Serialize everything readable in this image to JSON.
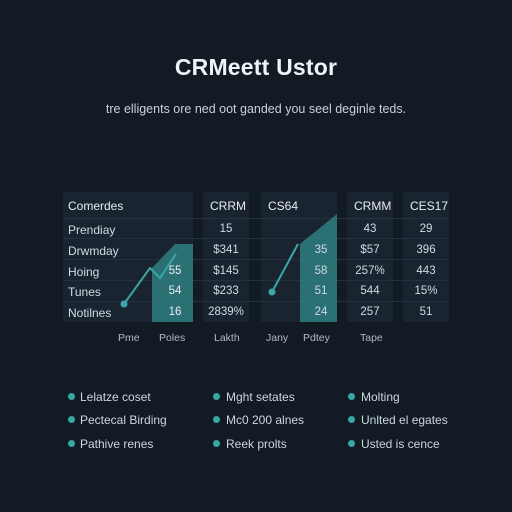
{
  "header": {
    "title": "CRMeett Ustor",
    "subtitle": "tre elligents ore ned oot ganded you seel deginle teds."
  },
  "table": {
    "col1_header": "Comerdes",
    "row_labels": [
      "Prendiay",
      "Drwmday",
      "Hoing",
      "Tunes",
      "Notilnes"
    ],
    "col2_header": "CRRM",
    "col2_values": [
      "15",
      "$341",
      "$145",
      "$233",
      "2839%"
    ],
    "col3_header": "CS64",
    "col4_header": "CRMM",
    "col4_values": [
      "43",
      "$57",
      "257%",
      "544",
      "257"
    ],
    "col5_header": "CES17",
    "col5_values": [
      "29",
      "396",
      "443",
      "15%",
      "51"
    ],
    "mini1_values": [
      "55",
      "54",
      "16"
    ],
    "mini2_values": [
      "35",
      "58",
      "51",
      "24"
    ],
    "axis_labels": [
      "Pme",
      "Poles",
      "Lakth",
      "Jany",
      "Pdtey",
      "Tape"
    ]
  },
  "legend": {
    "items": [
      "Lelatze coset",
      "Pectecal Birding",
      "Pathive renes",
      "Mght setates",
      "Mc0 200 alnes",
      "Reek prolts",
      "Molting",
      "Unlted el egates",
      "Usted is cence"
    ]
  },
  "colors": {
    "background": "#121a24",
    "panel": "#1a2431",
    "accent": "#3aa6a8",
    "area": "#2f7f80"
  }
}
